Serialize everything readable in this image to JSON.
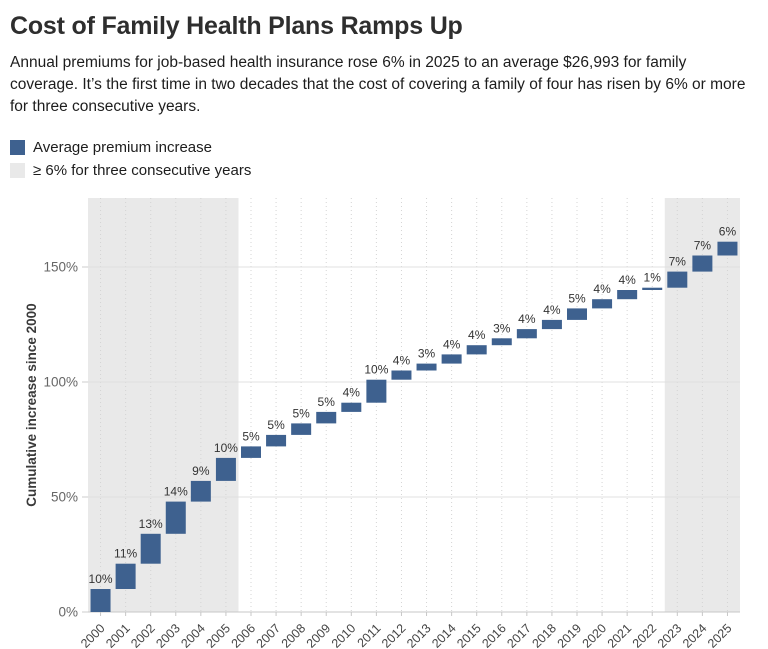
{
  "header": {
    "title": "Cost of Family Health Plans Ramps Up",
    "subtitle": "Annual premiums for job-based health insurance rose 6% in 2025 to an average $26,993 for family coverage. It’s the first time in two decades that the cost of covering a family of four has risen by 6% or more for three consecutive years."
  },
  "legend": {
    "items": [
      {
        "name": "average-premium-increase",
        "label": "Average premium increase",
        "color": "#3e618f"
      },
      {
        "name": "six-percent-three-consecutive-years",
        "label": "≥ 6% for three consecutive years",
        "color": "#e9e9e9"
      }
    ]
  },
  "chart_data": {
    "type": "bar",
    "subtype": "waterfall-cumulative",
    "title": "Cost of Family Health Plans Ramps Up",
    "xlabel": "",
    "ylabel": "Cumulative increase since 2000",
    "categories": [
      "2000",
      "2001",
      "2002",
      "2003",
      "2004",
      "2005",
      "2006",
      "2007",
      "2008",
      "2009",
      "2010",
      "2011",
      "2012",
      "2013",
      "2014",
      "2015",
      "2016",
      "2017",
      "2018",
      "2019",
      "2020",
      "2021",
      "2022",
      "2023",
      "2024",
      "2025"
    ],
    "values": [
      10,
      11,
      13,
      14,
      9,
      10,
      5,
      5,
      5,
      5,
      4,
      10,
      4,
      3,
      4,
      4,
      3,
      4,
      4,
      5,
      4,
      4,
      1,
      7,
      7,
      6
    ],
    "value_label_suffix": "%",
    "yticks": [
      0,
      50,
      100,
      150
    ],
    "ytick_suffix": "%",
    "ylim": [
      0,
      180
    ],
    "grid": true,
    "legend_position": "top-left",
    "bar_color": "#3e618f",
    "highlight_bands": [
      {
        "from_year": "2000",
        "to_year": "2005",
        "color": "#e9e9e9",
        "meaning": "≥ 6% for three consecutive years"
      },
      {
        "from_year": "2023",
        "to_year": "2025",
        "color": "#e9e9e9",
        "meaning": "≥ 6% for three consecutive years"
      }
    ]
  }
}
